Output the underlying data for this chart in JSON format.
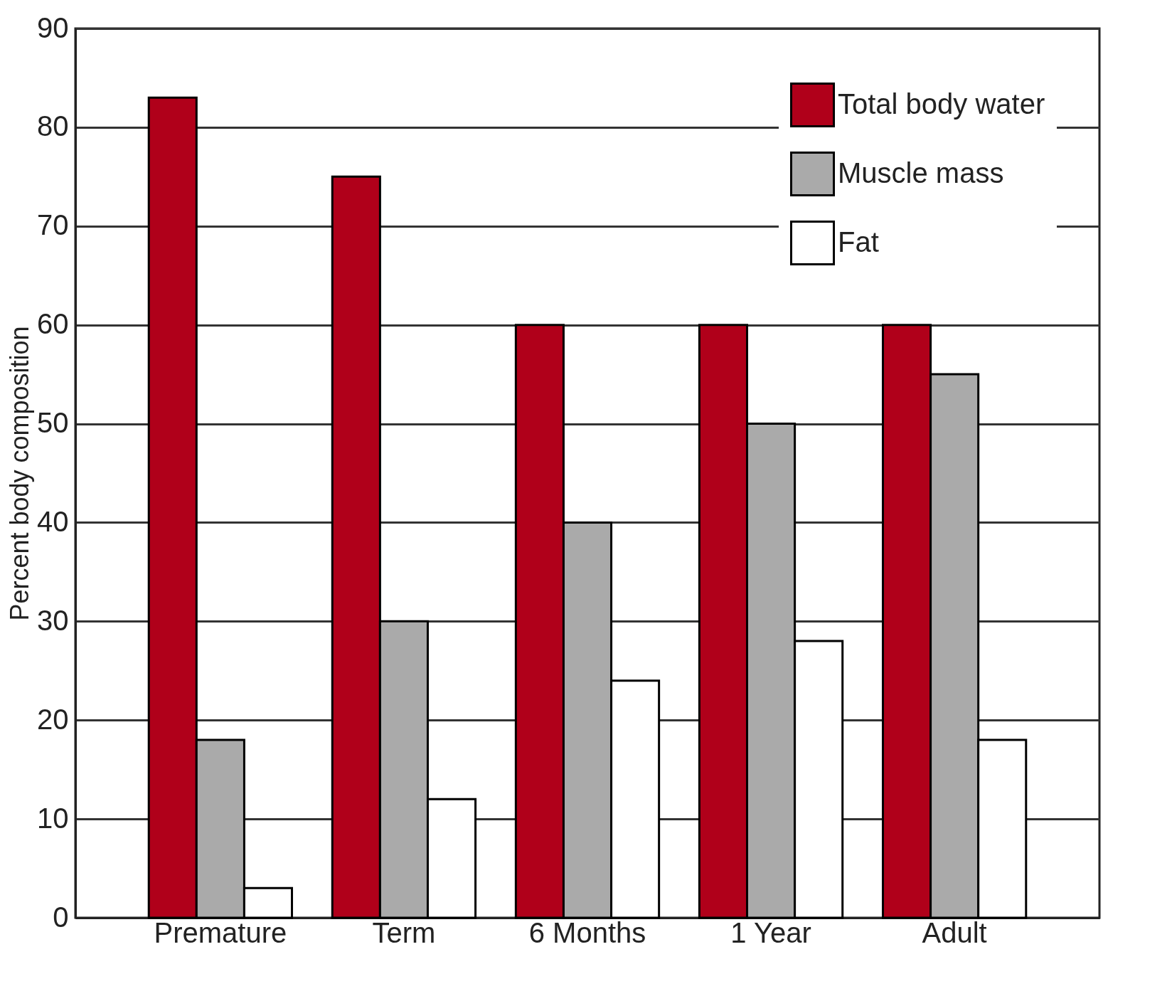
{
  "chart_data": {
    "type": "bar",
    "ylabel": "Percent body composition",
    "categories": [
      "Premature",
      "Term",
      "6 Months",
      "1 Year",
      "Adult"
    ],
    "series": [
      {
        "name": "Total body water",
        "color": "#b0001a",
        "values": [
          83,
          75,
          60,
          60,
          60
        ]
      },
      {
        "name": "Muscle mass",
        "color": "#aaaaaa",
        "values": [
          18,
          30,
          40,
          50,
          55
        ]
      },
      {
        "name": "Fat",
        "color": "#ffffff",
        "values": [
          3,
          12,
          24,
          28,
          18
        ]
      }
    ],
    "ylim": [
      0,
      90
    ],
    "yticks": [
      0,
      10,
      20,
      30,
      40,
      50,
      60,
      70,
      80,
      90
    ],
    "grid": "y",
    "legend": "top right"
  }
}
